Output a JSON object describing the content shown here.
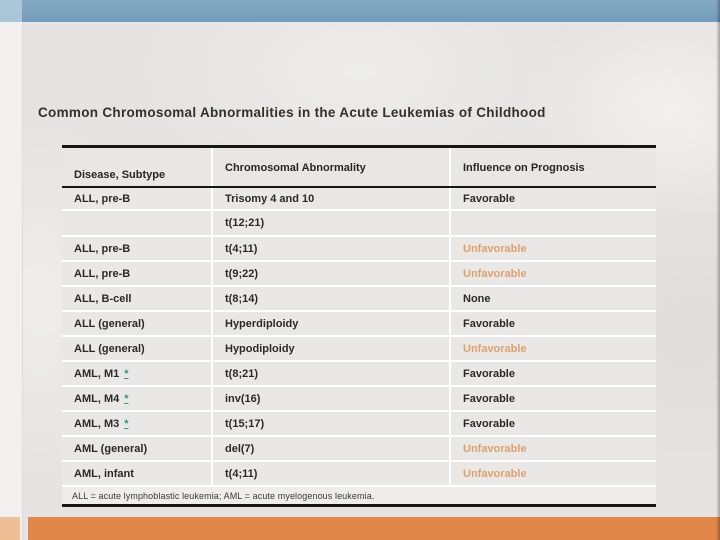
{
  "title": "Common Chromosomal Abnormalities in the Acute Leukemias of Childhood",
  "table": {
    "columns": [
      {
        "label": "Disease, Subtype"
      },
      {
        "label": "Chromosomal Abnormality"
      },
      {
        "label": "Influence on Prognosis"
      }
    ],
    "rows": [
      {
        "disease": "ALL, pre-B",
        "link": "",
        "abnormality": "Trisomy 4 and 10",
        "prognosis": "Favorable"
      },
      {
        "disease": "",
        "link": "",
        "abnormality": "t(12;21)",
        "prognosis": ""
      },
      {
        "disease": "ALL, pre-B",
        "link": "",
        "abnormality": "t(4;11)",
        "prognosis": "Unfavorable"
      },
      {
        "disease": "ALL, pre-B",
        "link": "",
        "abnormality": "t(9;22)",
        "prognosis": "Unfavorable"
      },
      {
        "disease": "ALL, B-cell",
        "link": "",
        "abnormality": "t(8;14)",
        "prognosis": "None"
      },
      {
        "disease": "ALL (general)",
        "link": "",
        "abnormality": "Hyperdiploidy",
        "prognosis": "Favorable"
      },
      {
        "disease": "ALL (general)",
        "link": "",
        "abnormality": "Hypodiploidy",
        "prognosis": "Unfavorable"
      },
      {
        "disease": "AML, M1",
        "link": "*",
        "abnormality": "t(8;21)",
        "prognosis": "Favorable"
      },
      {
        "disease": "AML, M4",
        "link": "*",
        "abnormality": "inv(16)",
        "prognosis": "Favorable"
      },
      {
        "disease": "AML, M3",
        "link": "*",
        "abnormality": "t(15;17)",
        "prognosis": "Favorable"
      },
      {
        "disease": "AML (general)",
        "link": "",
        "abnormality": "del(7)",
        "prognosis": "Unfavorable"
      },
      {
        "disease": "AML, infant",
        "link": "",
        "abnormality": "t(4;11)",
        "prognosis": "Unfavorable"
      }
    ],
    "footnote": "ALL = acute lymphoblastic leukemia; AML = acute myelogenous leukemia."
  },
  "colors": {
    "top_bar": "#7BA2BF",
    "top_corner": "#AAC6D9",
    "bottom_bar": "#E2874A",
    "bottom_corner": "#EEBF94",
    "unfavorable_text": "#DFA06C",
    "asterisk_link": "#2F9488",
    "border_black": "#161616",
    "cell_background": "#EAE8E7"
  }
}
